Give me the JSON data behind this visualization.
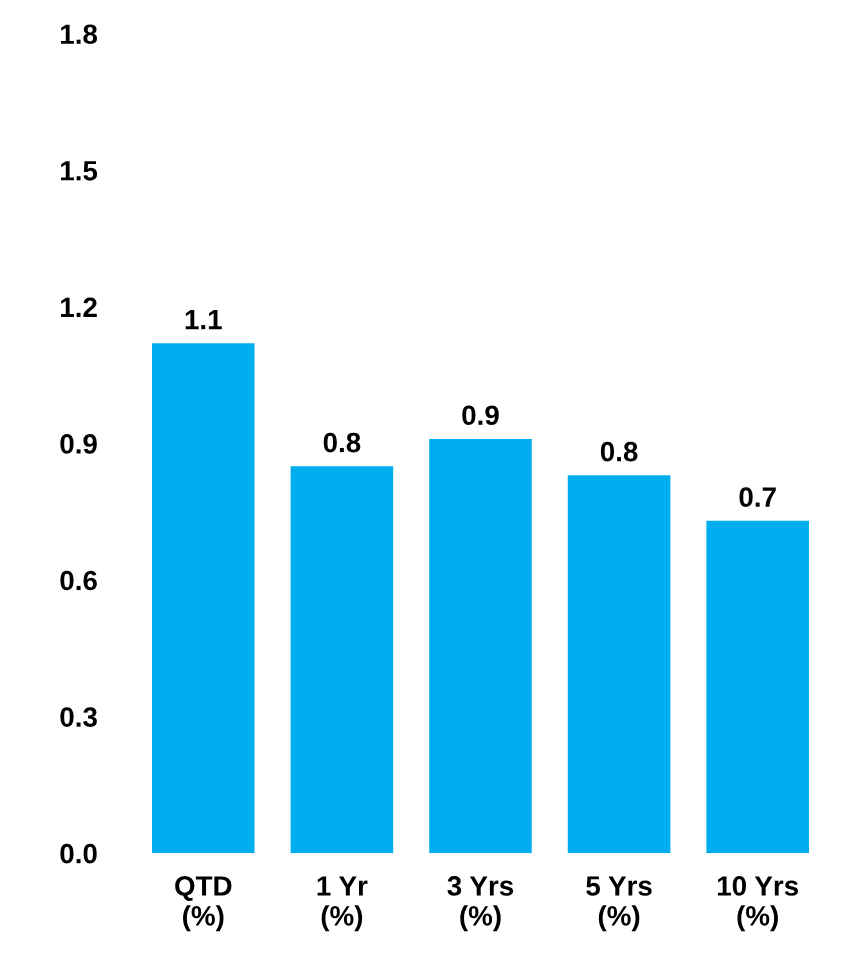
{
  "chart_data": {
    "type": "bar",
    "categories": [
      "QTD\n(%)",
      "1 Yr\n(%)",
      "3 Yrs\n(%)",
      "5 Yrs\n(%)",
      "10 Yrs\n(%)"
    ],
    "values": [
      1.12,
      0.85,
      0.91,
      0.83,
      0.73
    ],
    "value_labels": [
      "1.1",
      "0.8",
      "0.9",
      "0.8",
      "0.7"
    ],
    "color": "#00adef",
    "ylim": [
      0,
      1.8
    ],
    "yticks": [
      {
        "value": 0,
        "label": "0.0"
      },
      0.3,
      0.6,
      0.9,
      1.2,
      1.5,
      1.8
    ],
    "grid": false
  }
}
